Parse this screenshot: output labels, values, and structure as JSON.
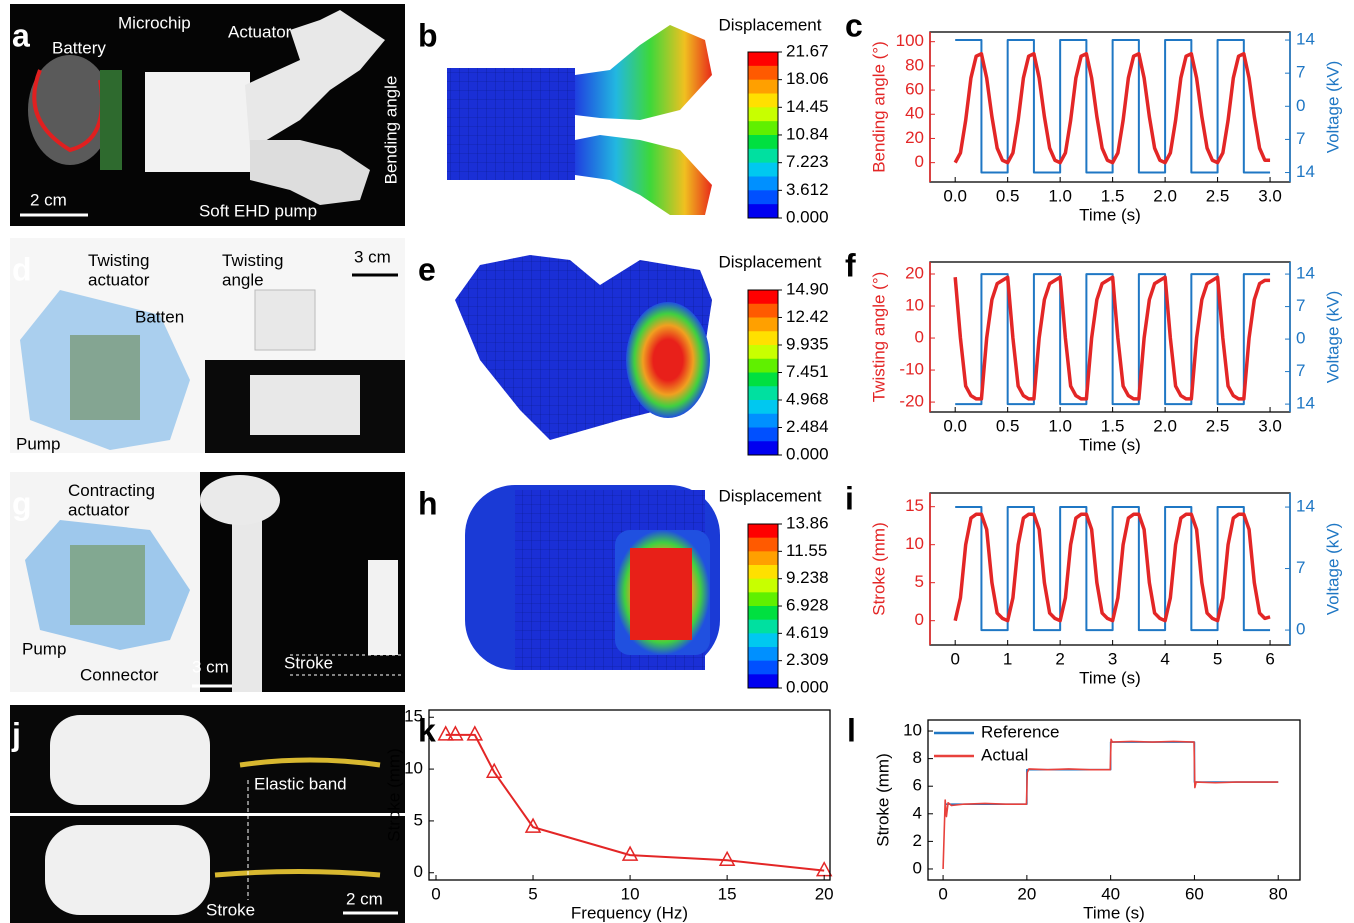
{
  "panel_labels": [
    "a",
    "b",
    "c",
    "d",
    "e",
    "f",
    "g",
    "h",
    "i",
    "j",
    "k",
    "l"
  ],
  "panel_a": {
    "battery": "Battery",
    "microchip": "Microchip",
    "actuator": "Actuator",
    "bending_angle": "Bending angle",
    "scale": "2 cm",
    "pump": "Soft EHD pump"
  },
  "panel_d": {
    "actuator": "Twisting actuator",
    "batten": "Batten",
    "pump": "Pump",
    "twisting_angle": "Twisting angle",
    "scale": "3 cm"
  },
  "panel_g": {
    "actuator": "Contracting actuator",
    "pump": "Pump",
    "connector": "Connector",
    "scale": "3 cm",
    "stroke": "Stroke"
  },
  "panel_j": {
    "band": "Elastic band",
    "stroke": "Stroke",
    "scale": "2 cm"
  },
  "colorbars": [
    {
      "title": "Displacement",
      "ticks": [
        21.67,
        18.06,
        14.45,
        10.84,
        7.223,
        3.612,
        {
          "value": 0,
          "label": "0.000"
        }
      ]
    },
    {
      "title": "Displacement",
      "ticks": [
        {
          "value": 14.9,
          "label": "14.90"
        },
        12.42,
        9.935,
        7.451,
        4.968,
        2.484,
        {
          "value": 0,
          "label": "0.000"
        }
      ]
    },
    {
      "title": "Displacement",
      "ticks": [
        13.86,
        11.55,
        9.238,
        6.928,
        4.619,
        2.309,
        {
          "value": 0,
          "label": "0.000"
        }
      ]
    }
  ],
  "chart_data": [
    {
      "type": "line",
      "xlabel": "Time (s)",
      "ylabel": "Bending angle (°)",
      "y2label": "Voltage (kV)",
      "xlim": [
        -0.24,
        3.19
      ],
      "ylim": [
        -16,
        108
      ],
      "y2lim": [
        -16,
        15.7
      ],
      "xticks": [
        {
          "value": 0,
          "label": "0.0"
        },
        0.5,
        {
          "value": 1,
          "label": "1.0"
        },
        1.5,
        {
          "value": 2,
          "label": "2.0"
        },
        2.5,
        {
          "value": 3,
          "label": "3.0"
        }
      ],
      "yticks": [
        0,
        20,
        40,
        60,
        80,
        100
      ],
      "y2ticks": [
        {
          "value": -14,
          "label": "14"
        },
        {
          "value": -7,
          "label": "7"
        },
        0,
        7,
        14
      ],
      "series": [
        {
          "color": "#1f77c4",
          "axis": "y2",
          "x": [
            0,
            0.25,
            0.25,
            0.5,
            0.5,
            0.75,
            0.75,
            1,
            1,
            1.25,
            1.25,
            1.5,
            1.5,
            1.75,
            1.75,
            2,
            2,
            2.25,
            2.25,
            2.5,
            2.5,
            2.75,
            2.75,
            3
          ],
          "values": [
            14,
            14,
            -14,
            -14,
            14,
            14,
            -14,
            -14,
            14,
            14,
            -14,
            -14,
            14,
            14,
            -14,
            -14,
            14,
            14,
            -14,
            -14,
            14,
            14,
            -14,
            -14
          ]
        },
        {
          "color": "#e32626",
          "axis": "y",
          "x": [
            0,
            0.05,
            0.1,
            0.15,
            0.2,
            0.25,
            0.3,
            0.35,
            0.4,
            0.45,
            0.5,
            0.55,
            0.6,
            0.65,
            0.7,
            0.75,
            0.8,
            0.85,
            0.9,
            0.95,
            1,
            1.05,
            1.1,
            1.15,
            1.2,
            1.25,
            1.3,
            1.35,
            1.4,
            1.45,
            1.5,
            1.55,
            1.6,
            1.65,
            1.7,
            1.75,
            1.8,
            1.85,
            1.9,
            1.95,
            2,
            2.05,
            2.1,
            2.15,
            2.2,
            2.25,
            2.3,
            2.35,
            2.4,
            2.45,
            2.5,
            2.55,
            2.6,
            2.65,
            2.7,
            2.75,
            2.8,
            2.85,
            2.9,
            2.95,
            3
          ],
          "values": [
            0,
            8,
            35,
            70,
            88,
            90,
            70,
            38,
            12,
            2,
            0,
            8,
            35,
            70,
            88,
            90,
            70,
            38,
            12,
            2,
            0,
            8,
            35,
            70,
            88,
            90,
            70,
            38,
            12,
            2,
            0,
            8,
            35,
            70,
            88,
            90,
            70,
            38,
            12,
            2,
            0,
            8,
            35,
            70,
            88,
            90,
            70,
            38,
            12,
            2,
            0,
            8,
            35,
            70,
            88,
            90,
            70,
            38,
            12,
            2,
            2
          ]
        }
      ]
    },
    {
      "type": "line",
      "xlabel": "Time (s)",
      "ylabel": "Twisting angle (°)",
      "y2label": "Voltage (kV)",
      "xlim": [
        -0.24,
        3.19
      ],
      "ylim": [
        -23.1,
        23.75
      ],
      "y2lim": [
        -15.7,
        16.6
      ],
      "xticks": [
        {
          "value": 0,
          "label": "0.0"
        },
        0.5,
        {
          "value": 1,
          "label": "1.0"
        },
        1.5,
        {
          "value": 2,
          "label": "2.0"
        },
        2.5,
        {
          "value": 3,
          "label": "3.0"
        }
      ],
      "yticks": [
        -20,
        -10,
        0,
        10,
        20
      ],
      "y2ticks": [
        {
          "value": -14,
          "label": "14"
        },
        {
          "value": -7,
          "label": "7"
        },
        0,
        7,
        14
      ],
      "series": [
        {
          "color": "#1f77c4",
          "axis": "y2",
          "x": [
            0,
            0.25,
            0.25,
            0.5,
            0.5,
            0.75,
            0.75,
            1,
            1,
            1.25,
            1.25,
            1.5,
            1.5,
            1.75,
            1.75,
            2,
            2,
            2.25,
            2.25,
            2.5,
            2.5,
            2.75,
            2.75,
            3
          ],
          "values": [
            -14,
            -14,
            14,
            14,
            -14,
            -14,
            14,
            14,
            -14,
            -14,
            14,
            14,
            -14,
            -14,
            14,
            14,
            -14,
            -14,
            14,
            14,
            -14,
            -14,
            14,
            14
          ]
        },
        {
          "color": "#e32626",
          "axis": "y",
          "x": [
            0,
            0.05,
            0.1,
            0.15,
            0.2,
            0.25,
            0.3,
            0.35,
            0.4,
            0.45,
            0.5,
            0.55,
            0.6,
            0.65,
            0.7,
            0.75,
            0.8,
            0.85,
            0.9,
            0.95,
            1,
            1.05,
            1.1,
            1.15,
            1.2,
            1.25,
            1.3,
            1.35,
            1.4,
            1.45,
            1.5,
            1.55,
            1.6,
            1.65,
            1.7,
            1.75,
            1.8,
            1.85,
            1.9,
            1.95,
            2,
            2.05,
            2.1,
            2.15,
            2.2,
            2.25,
            2.3,
            2.35,
            2.4,
            2.45,
            2.5,
            2.55,
            2.6,
            2.65,
            2.7,
            2.75,
            2.8,
            2.85,
            2.9,
            2.95,
            3
          ],
          "values": [
            19,
            0,
            -15,
            -18,
            -19,
            -19,
            0,
            12,
            17,
            18,
            19,
            0,
            -15,
            -18,
            -19,
            -19,
            0,
            12,
            17,
            18,
            19,
            0,
            -15,
            -18,
            -19,
            -19,
            0,
            12,
            17,
            18,
            19,
            0,
            -15,
            -18,
            -19,
            -19,
            0,
            12,
            17,
            18,
            19,
            0,
            -15,
            -18,
            -19,
            -19,
            0,
            12,
            17,
            18,
            19,
            0,
            -15,
            -18,
            -19,
            -19,
            0,
            12,
            17,
            18,
            18
          ]
        }
      ]
    },
    {
      "type": "line",
      "xlabel": "Time (s)",
      "ylabel": "Stroke (mm)",
      "y2label": "Voltage (kV)",
      "xlim": [
        -0.48,
        6.38
      ],
      "ylim": [
        -3.2,
        16.8
      ],
      "y2lim": [
        -1.7,
        15.6
      ],
      "xticks": [
        0,
        1,
        2,
        3,
        4,
        5,
        6
      ],
      "yticks": [
        0,
        5,
        10,
        15
      ],
      "y2ticks": [
        0,
        7,
        14
      ],
      "series": [
        {
          "color": "#1f77c4",
          "axis": "y2",
          "x": [
            0,
            0.5,
            0.5,
            1,
            1,
            1.5,
            1.5,
            2,
            2,
            2.5,
            2.5,
            3,
            3,
            3.5,
            3.5,
            4,
            4,
            4.5,
            4.5,
            5,
            5,
            5.5,
            5.5,
            6
          ],
          "values": [
            14,
            14,
            0,
            0,
            14,
            14,
            0,
            0,
            14,
            14,
            0,
            0,
            14,
            14,
            0,
            0,
            14,
            14,
            0,
            0,
            14,
            14,
            0,
            0
          ]
        },
        {
          "color": "#e32626",
          "axis": "y",
          "x": [
            0,
            0.1,
            0.2,
            0.3,
            0.4,
            0.5,
            0.6,
            0.7,
            0.8,
            0.9,
            1,
            1.1,
            1.2,
            1.3,
            1.4,
            1.5,
            1.6,
            1.7,
            1.8,
            1.9,
            2,
            2.1,
            2.2,
            2.3,
            2.4,
            2.5,
            2.6,
            2.7,
            2.8,
            2.9,
            3,
            3.1,
            3.2,
            3.3,
            3.4,
            3.5,
            3.6,
            3.7,
            3.8,
            3.9,
            4,
            4.1,
            4.2,
            4.3,
            4.4,
            4.5,
            4.6,
            4.7,
            4.8,
            4.9,
            5,
            5.1,
            5.2,
            5.3,
            5.4,
            5.5,
            5.6,
            5.7,
            5.8,
            5.9,
            6
          ],
          "values": [
            0,
            3,
            10,
            13.5,
            14,
            14,
            12,
            5,
            1,
            0.3,
            0,
            3,
            10,
            13.5,
            14,
            14,
            12,
            5,
            1,
            0.3,
            0,
            3,
            10,
            13.5,
            14,
            14,
            12,
            5,
            1,
            0.3,
            0,
            3,
            10,
            13.5,
            14,
            14,
            12,
            5,
            1,
            0.3,
            0,
            3,
            10,
            13.5,
            14,
            14,
            12,
            5,
            1,
            0.3,
            0,
            3,
            10,
            13.5,
            14,
            14,
            12,
            5,
            1,
            0.3,
            0.5
          ]
        }
      ]
    },
    {
      "type": "line",
      "xlabel": "Frequency (Hz)",
      "ylabel": "Stroke (mm)",
      "marker": "triangle",
      "xlim": [
        -0.36,
        20.3
      ],
      "ylim": [
        -0.7,
        15.7
      ],
      "xticks": [
        0,
        5,
        10,
        15,
        20
      ],
      "yticks": [
        0,
        5,
        10,
        15
      ],
      "series": [
        {
          "color": "#e32626",
          "axis": "y",
          "x": [
            0.5,
            1,
            2,
            3,
            5,
            10,
            15,
            20
          ],
          "values": [
            13.3,
            13.3,
            13.3,
            9.7,
            4.4,
            1.7,
            1.2,
            0.2
          ]
        }
      ]
    },
    {
      "type": "line",
      "xlabel": "Time (s)",
      "ylabel": "Stroke (mm)",
      "legend": "upper left",
      "xlim": [
        -3.6,
        85.2
      ],
      "ylim": [
        -0.8,
        10.8
      ],
      "xticks": [
        0,
        20,
        40,
        60,
        80
      ],
      "yticks": [
        0,
        2,
        4,
        6,
        8,
        10
      ],
      "series": [
        {
          "name": "Reference",
          "color": "#1f77c4",
          "axis": "y",
          "x": [
            0.5,
            20,
            20,
            40,
            40,
            60,
            60,
            80
          ],
          "values": [
            4.7,
            4.7,
            7.2,
            7.2,
            9.2,
            9.2,
            6.3,
            6.3
          ]
        },
        {
          "name": "Actual",
          "color": "#e8413c",
          "axis": "y",
          "x": [
            0,
            0.5,
            0.8,
            1.2,
            2,
            5,
            10,
            15,
            19.9,
            20.1,
            20.5,
            25,
            30,
            35,
            39.9,
            40.1,
            40.4,
            45,
            50,
            55,
            59.9,
            60.1,
            60.4,
            65,
            70,
            75,
            80
          ],
          "values": [
            0,
            5,
            3.8,
            4.8,
            4.6,
            4.7,
            4.75,
            4.7,
            4.7,
            7,
            7.25,
            7.2,
            7.25,
            7.2,
            7.2,
            9.4,
            9.2,
            9.25,
            9.2,
            9.25,
            9.2,
            5.9,
            6.3,
            6.25,
            6.3,
            6.3,
            6.3
          ]
        }
      ]
    }
  ]
}
